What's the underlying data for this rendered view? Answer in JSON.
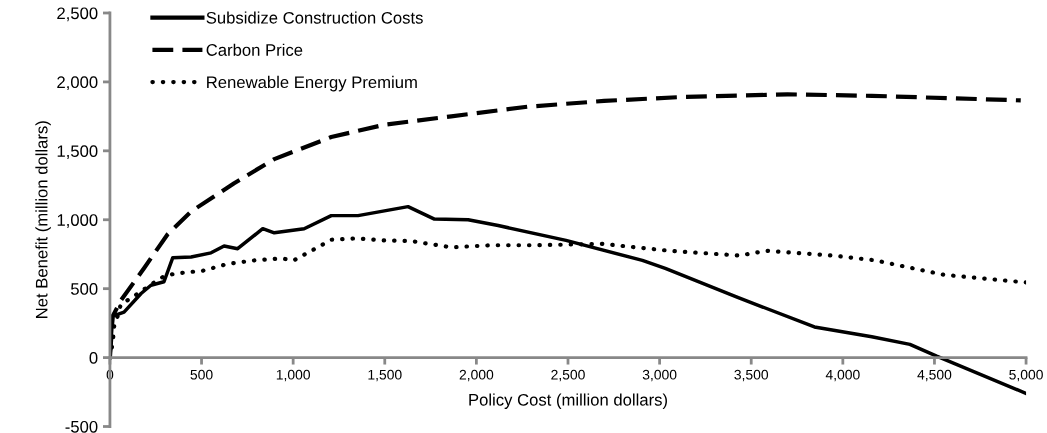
{
  "chart_data": {
    "type": "line",
    "xlabel": "Policy Cost (million dollars)",
    "ylabel": "Net Benefit (million dollars)",
    "xlim": [
      0,
      5000
    ],
    "xticks": [
      {
        "value": 0,
        "label": "0"
      },
      {
        "value": 500,
        "label": "500"
      },
      {
        "value": 1000,
        "label": "1,000"
      },
      {
        "value": 1500,
        "label": "1,500"
      },
      {
        "value": 2000,
        "label": "2,000"
      },
      {
        "value": 2500,
        "label": "2,500"
      },
      {
        "value": 3000,
        "label": "3,000"
      },
      {
        "value": 3500,
        "label": "3,500"
      },
      {
        "value": 4000,
        "label": "4,000"
      },
      {
        "value": 4500,
        "label": "4,500"
      },
      {
        "value": 5000,
        "label": "5,000"
      }
    ],
    "ylim": [
      -500,
      2500
    ],
    "yticks": [
      {
        "value": -500,
        "label": "-500"
      },
      {
        "value": 0,
        "label": "0"
      },
      {
        "value": 500,
        "label": "500"
      },
      {
        "value": 1000,
        "label": "1,000"
      },
      {
        "value": 1500,
        "label": "1,500"
      },
      {
        "value": 2000,
        "label": "2,000"
      },
      {
        "value": 2500,
        "label": "2,500"
      }
    ],
    "grid": false,
    "legend": "top left",
    "marker": "none",
    "series": [
      {
        "name": "Subsidize Construction Costs",
        "color": "#000000",
        "line_style": "solid",
        "x": [
          0,
          15,
          77,
          170,
          224,
          295,
          343,
          443,
          552,
          623,
          697,
          834,
          897,
          1060,
          1208,
          1354,
          1627,
          1771,
          1955,
          2119,
          2489,
          2906,
          3031,
          3426,
          3845,
          4158,
          4366,
          4512,
          5000
        ],
        "values": [
          0,
          300,
          330,
          465,
          525,
          550,
          725,
          730,
          760,
          810,
          790,
          935,
          905,
          935,
          1030,
          1030,
          1095,
          1005,
          1000,
          958,
          850,
          705,
          647,
          437,
          222,
          151,
          96,
          10,
          -260
        ]
      },
      {
        "name": "Carbon Price",
        "color": "#000000",
        "line_style": "dashed",
        "x": [
          0,
          15,
          60,
          187,
          315,
          443,
          678,
          897,
          1208,
          1500,
          1863,
          2279,
          2697,
          3115,
          3698,
          4158,
          4971
        ],
        "values": [
          0,
          300,
          415,
          650,
          895,
          1060,
          1265,
          1440,
          1600,
          1690,
          1750,
          1820,
          1862,
          1890,
          1910,
          1899,
          1866
        ]
      },
      {
        "name": "Renewable Energy Premium",
        "color": "#000000",
        "line_style": "dotted",
        "x": [
          0,
          15,
          24,
          42,
          60,
          115,
          224,
          295,
          358,
          506,
          643,
          789,
          935,
          1003,
          1134,
          1208,
          1345,
          1499,
          1645,
          1863,
          2082,
          2322,
          2687,
          3052,
          3437,
          3583,
          3948,
          4178,
          4554,
          5000
        ],
        "values": [
          0,
          105,
          240,
          300,
          390,
          430,
          530,
          590,
          610,
          630,
          680,
          705,
          720,
          705,
          800,
          855,
          865,
          850,
          845,
          800,
          815,
          815,
          825,
          775,
          740,
          775,
          740,
          705,
          600,
          545
        ]
      }
    ]
  }
}
